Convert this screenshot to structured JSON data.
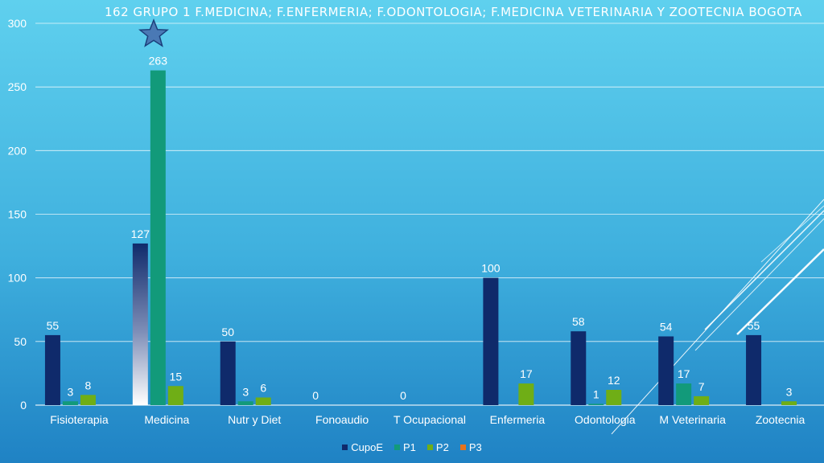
{
  "chart_data": {
    "type": "bar",
    "title": "162  GRUPO 1  F.MEDICINA;  F.ENFERMERIA;  F.ODONTOLOGIA;  F.MEDICINA VETERINARIA Y ZOOTECNIA  BOGOTA",
    "categories": [
      "Fisioterapia",
      "Medicina",
      "Nutr y Diet",
      "Fonoaudio",
      "T Ocupacional",
      "Enfermeria",
      "Odontologia",
      "M Veterinaria",
      "Zootecnia"
    ],
    "series": [
      {
        "name": "CupoE",
        "values": [
          55,
          127,
          50,
          0,
          0,
          100,
          58,
          54,
          55
        ],
        "color": "#0f2a6b"
      },
      {
        "name": "P1",
        "values": [
          3,
          263,
          3,
          null,
          null,
          null,
          1,
          17,
          null
        ],
        "color": "#129a7a"
      },
      {
        "name": "P2",
        "values": [
          8,
          15,
          6,
          null,
          null,
          17,
          12,
          7,
          3
        ],
        "color": "#6fae16"
      },
      {
        "name": "P3",
        "values": [
          null,
          null,
          null,
          null,
          null,
          null,
          null,
          null,
          null
        ],
        "color": "#e8731c"
      }
    ],
    "ylim": [
      0,
      300
    ],
    "yticks": [
      0,
      50,
      100,
      150,
      200,
      250,
      300
    ],
    "grid": true,
    "legend_position": "bottom"
  }
}
